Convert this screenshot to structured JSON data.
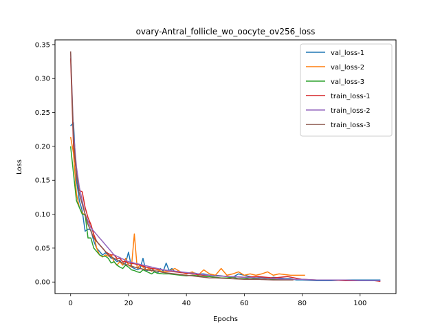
{
  "chart_data": {
    "type": "line",
    "title": "ovary-Antral_follicle_wo_oocyte_ov256_loss",
    "xlabel": "Epochs",
    "ylabel": "Loss",
    "xlim": [
      -5.4,
      112.4
    ],
    "ylim": [
      -0.017,
      0.357
    ],
    "xticks": [
      0,
      20,
      40,
      60,
      80,
      100
    ],
    "yticks": [
      0.0,
      0.05,
      0.1,
      0.15,
      0.2,
      0.25,
      0.3,
      0.35
    ],
    "ytick_labels": [
      "0.00",
      "0.05",
      "0.10",
      "0.15",
      "0.20",
      "0.25",
      "0.30",
      "0.35"
    ],
    "grid": false,
    "legend_position": "top-right",
    "series": [
      {
        "name": "val_loss-1",
        "color": "#1f77b4",
        "x": [
          0,
          1,
          2,
          3,
          4,
          5,
          6,
          7,
          8,
          9,
          10,
          11,
          12,
          13,
          14,
          15,
          16,
          17,
          18,
          19,
          20,
          21,
          22,
          23,
          24,
          25,
          26,
          27,
          28,
          29,
          30,
          31,
          32,
          33,
          34,
          35,
          36,
          37,
          38,
          39,
          40,
          42,
          44,
          46,
          48,
          50,
          52,
          54,
          56,
          58,
          60,
          62,
          64,
          66,
          68,
          70,
          72,
          74,
          76,
          78,
          80,
          85,
          90,
          95,
          100,
          105,
          107
        ],
        "values": [
          0.23,
          0.235,
          0.15,
          0.12,
          0.105,
          0.075,
          0.078,
          0.077,
          0.06,
          0.05,
          0.045,
          0.04,
          0.043,
          0.04,
          0.035,
          0.034,
          0.03,
          0.032,
          0.025,
          0.028,
          0.044,
          0.022,
          0.02,
          0.018,
          0.02,
          0.035,
          0.016,
          0.018,
          0.02,
          0.015,
          0.013,
          0.02,
          0.016,
          0.028,
          0.017,
          0.02,
          0.015,
          0.016,
          0.014,
          0.014,
          0.012,
          0.014,
          0.012,
          0.012,
          0.01,
          0.01,
          0.009,
          0.008,
          0.007,
          0.012,
          0.01,
          0.008,
          0.006,
          0.007,
          0.005,
          0.007,
          0.006,
          0.005,
          0.005,
          0.003,
          0.003,
          0.002,
          0.002,
          0.003,
          0.003,
          0.003,
          0.003
        ]
      },
      {
        "name": "val_loss-2",
        "color": "#ff7f0e",
        "x": [
          0,
          1,
          2,
          3,
          4,
          5,
          6,
          7,
          8,
          9,
          10,
          11,
          12,
          13,
          14,
          15,
          16,
          17,
          18,
          19,
          20,
          21,
          22,
          23,
          24,
          25,
          26,
          27,
          28,
          29,
          30,
          32,
          34,
          36,
          38,
          40,
          42,
          44,
          46,
          48,
          50,
          52,
          54,
          56,
          58,
          60,
          62,
          64,
          66,
          68,
          70,
          72,
          74,
          76,
          78,
          80,
          81
        ],
        "values": [
          0.214,
          0.19,
          0.13,
          0.11,
          0.102,
          0.098,
          0.09,
          0.085,
          0.07,
          0.05,
          0.04,
          0.037,
          0.04,
          0.038,
          0.04,
          0.03,
          0.025,
          0.03,
          0.025,
          0.035,
          0.025,
          0.022,
          0.071,
          0.02,
          0.025,
          0.022,
          0.018,
          0.02,
          0.016,
          0.02,
          0.018,
          0.015,
          0.016,
          0.02,
          0.015,
          0.012,
          0.015,
          0.01,
          0.018,
          0.012,
          0.01,
          0.02,
          0.01,
          0.012,
          0.015,
          0.01,
          0.012,
          0.01,
          0.012,
          0.015,
          0.01,
          0.012,
          0.011,
          0.01,
          0.01,
          0.01,
          0.01
        ]
      },
      {
        "name": "val_loss-3",
        "color": "#2ca02c",
        "x": [
          0,
          1,
          2,
          3,
          4,
          5,
          6,
          7,
          8,
          9,
          10,
          11,
          12,
          13,
          14,
          15,
          16,
          17,
          18,
          19,
          20,
          21,
          22,
          23,
          24,
          25,
          26,
          27,
          28,
          29,
          30,
          32,
          34,
          36,
          38,
          40,
          42,
          44,
          46,
          48,
          50,
          52,
          54,
          56,
          58,
          60,
          62,
          64,
          66,
          68,
          70,
          72,
          74,
          76,
          77
        ],
        "values": [
          0.2,
          0.16,
          0.12,
          0.11,
          0.1,
          0.1,
          0.065,
          0.065,
          0.05,
          0.045,
          0.04,
          0.038,
          0.038,
          0.035,
          0.028,
          0.03,
          0.025,
          0.022,
          0.02,
          0.025,
          0.022,
          0.018,
          0.017,
          0.015,
          0.014,
          0.018,
          0.016,
          0.014,
          0.012,
          0.015,
          0.013,
          0.012,
          0.012,
          0.011,
          0.01,
          0.009,
          0.01,
          0.009,
          0.008,
          0.008,
          0.007,
          0.006,
          0.006,
          0.007,
          0.005,
          0.005,
          0.006,
          0.005,
          0.004,
          0.005,
          0.004,
          0.004,
          0.004,
          0.004,
          0.004
        ]
      },
      {
        "name": "train_loss-1",
        "color": "#d62728",
        "x": [
          0,
          1,
          2,
          3,
          4,
          5,
          6,
          7,
          8,
          9,
          10,
          11,
          12,
          13,
          14,
          15,
          16,
          17,
          18,
          19,
          20,
          22,
          24,
          26,
          28,
          30,
          32,
          34,
          36,
          38,
          40,
          42,
          44,
          46,
          48,
          50,
          55,
          60,
          65,
          70,
          75,
          80,
          85,
          90,
          95,
          100,
          105,
          107
        ],
        "values": [
          0.33,
          0.2,
          0.16,
          0.135,
          0.133,
          0.11,
          0.095,
          0.085,
          0.07,
          0.06,
          0.055,
          0.05,
          0.045,
          0.042,
          0.04,
          0.04,
          0.035,
          0.035,
          0.03,
          0.03,
          0.028,
          0.027,
          0.025,
          0.022,
          0.02,
          0.019,
          0.018,
          0.016,
          0.015,
          0.014,
          0.013,
          0.012,
          0.011,
          0.01,
          0.01,
          0.009,
          0.008,
          0.007,
          0.008,
          0.006,
          0.008,
          0.004,
          0.003,
          0.003,
          0.002,
          0.002,
          0.002,
          0.001
        ]
      },
      {
        "name": "train_loss-2",
        "color": "#9467bd",
        "x": [
          0,
          1,
          2,
          3,
          4,
          5,
          6,
          7,
          8,
          9,
          10,
          11,
          12,
          13,
          14,
          15,
          16,
          17,
          18,
          19,
          20,
          22,
          24,
          26,
          28,
          30,
          32,
          34,
          36,
          38,
          40,
          42,
          44,
          46,
          48,
          50,
          55,
          60,
          65,
          70,
          75,
          80,
          85,
          90,
          95,
          100,
          105,
          107
        ],
        "values": [
          0.34,
          0.22,
          0.17,
          0.14,
          0.12,
          0.1,
          0.09,
          0.08,
          0.075,
          0.07,
          0.065,
          0.06,
          0.055,
          0.05,
          0.045,
          0.04,
          0.038,
          0.036,
          0.034,
          0.032,
          0.03,
          0.028,
          0.026,
          0.024,
          0.022,
          0.02,
          0.018,
          0.017,
          0.016,
          0.015,
          0.014,
          0.013,
          0.012,
          0.011,
          0.01,
          0.009,
          0.008,
          0.007,
          0.006,
          0.005,
          0.004,
          0.004,
          0.003,
          0.003,
          0.003,
          0.002,
          0.002,
          0.002
        ]
      },
      {
        "name": "train_loss-3",
        "color": "#8c564b",
        "x": [
          0,
          1,
          2,
          3,
          4,
          5,
          6,
          7,
          8,
          9,
          10,
          11,
          12,
          13,
          14,
          15,
          16,
          17,
          18,
          19,
          20,
          22,
          24,
          26,
          28,
          30,
          32,
          34,
          36,
          38,
          40,
          42,
          44,
          46,
          48,
          50,
          55,
          60,
          65,
          70,
          75,
          77
        ],
        "values": [
          0.34,
          0.21,
          0.16,
          0.13,
          0.115,
          0.1,
          0.085,
          0.075,
          0.065,
          0.06,
          0.055,
          0.05,
          0.045,
          0.04,
          0.037,
          0.035,
          0.033,
          0.03,
          0.028,
          0.026,
          0.025,
          0.022,
          0.02,
          0.018,
          0.017,
          0.016,
          0.014,
          0.013,
          0.012,
          0.011,
          0.01,
          0.009,
          0.008,
          0.007,
          0.006,
          0.006,
          0.005,
          0.004,
          0.004,
          0.003,
          0.003,
          0.003
        ]
      }
    ]
  }
}
